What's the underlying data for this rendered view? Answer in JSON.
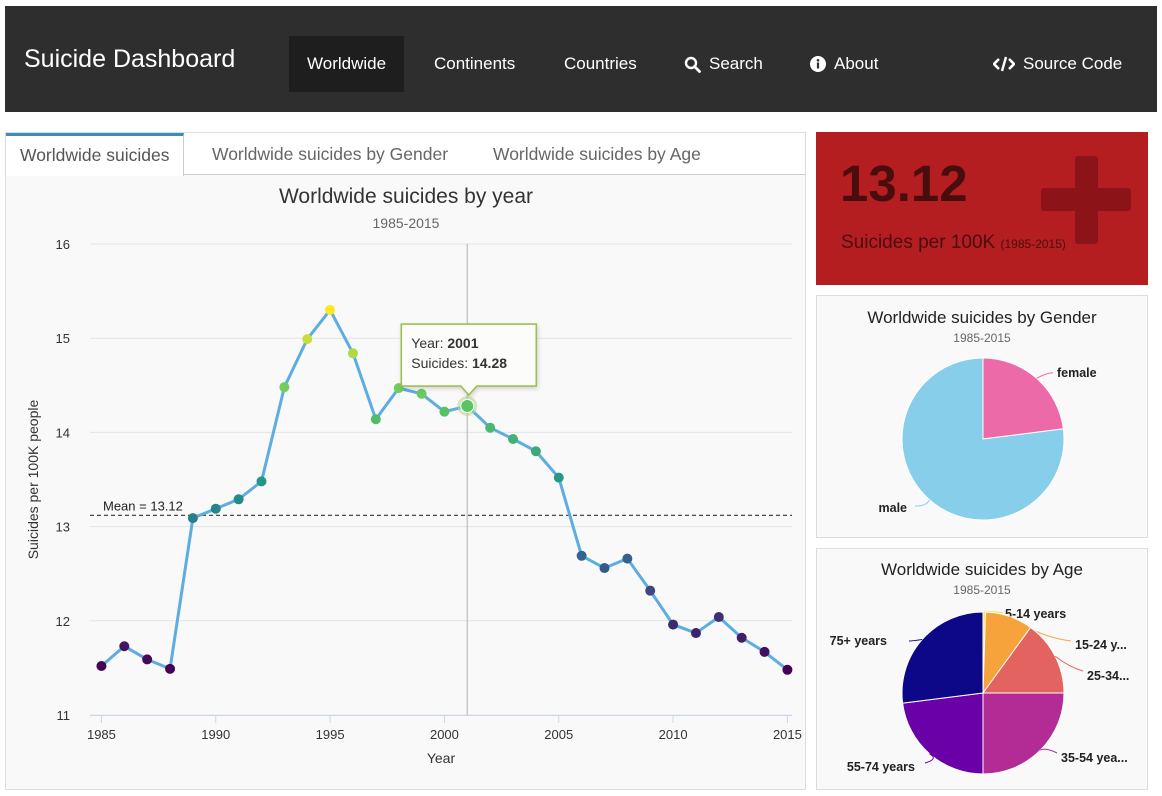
{
  "navbar": {
    "brand": "Suicide Dashboard",
    "items": [
      {
        "label": "Worldwide",
        "active": true
      },
      {
        "label": "Continents"
      },
      {
        "label": "Countries"
      },
      {
        "label": "Search",
        "icon": "search-icon"
      },
      {
        "label": "About",
        "icon": "info-icon"
      }
    ],
    "source_code": {
      "label": "Source Code",
      "icon": "code-icon"
    }
  },
  "tabs": [
    {
      "label": "Worldwide suicides",
      "active": true
    },
    {
      "label": "Worldwide suicides by Gender"
    },
    {
      "label": "Worldwide suicides by Age"
    }
  ],
  "kpi": {
    "value": "13.12",
    "label": "Suicides per 100K",
    "period": "(1985-2015)",
    "icon": "plus-icon",
    "color": "#b51e21"
  },
  "main_chart": {
    "title": "Worldwide suicides by year",
    "subtitle": "1985-2015",
    "mean_label": "Mean = 13.12",
    "tooltip": {
      "year_label": "Year:",
      "year": "2001",
      "value_label": "Suicides:",
      "value": "14.28"
    }
  },
  "gender_box": {
    "title": "Worldwide suicides by Gender",
    "subtitle": "1985-2015"
  },
  "age_box": {
    "title": "Worldwide suicides by Age",
    "subtitle": "1985-2015"
  },
  "chart_data": [
    {
      "type": "line",
      "title": "Worldwide suicides by year",
      "subtitle": "1985-2015",
      "xlabel": "Year",
      "ylabel": "Suicides per 100K people",
      "xlim": [
        1984.5,
        2015.2
      ],
      "ylim": [
        11,
        16
      ],
      "xticks": [
        1985,
        1990,
        1995,
        2000,
        2005,
        2010,
        2015
      ],
      "yticks": [
        11,
        12,
        13,
        14,
        15,
        16
      ],
      "grid": true,
      "mean": 13.12,
      "line_color": "#5dade2",
      "x": [
        1985,
        1986,
        1987,
        1988,
        1989,
        1990,
        1991,
        1992,
        1993,
        1994,
        1995,
        1996,
        1997,
        1998,
        1999,
        2000,
        2001,
        2002,
        2003,
        2004,
        2005,
        2006,
        2007,
        2008,
        2009,
        2010,
        2011,
        2012,
        2013,
        2014,
        2015
      ],
      "values": [
        11.52,
        11.73,
        11.59,
        11.49,
        13.09,
        13.19,
        13.29,
        13.48,
        14.48,
        14.99,
        15.3,
        14.84,
        14.14,
        14.47,
        14.41,
        14.22,
        14.28,
        14.05,
        13.93,
        13.8,
        13.52,
        12.69,
        12.56,
        12.66,
        12.32,
        11.96,
        11.87,
        12.04,
        11.82,
        11.67,
        11.48
      ]
    },
    {
      "type": "pie",
      "title": "Worldwide suicides by Gender",
      "subtitle": "1985-2015",
      "categories": [
        "female",
        "male"
      ],
      "values": [
        23,
        77
      ],
      "colors": [
        "#ec6aa7",
        "#87ceeb"
      ]
    },
    {
      "type": "pie",
      "title": "Worldwide suicides by Age",
      "subtitle": "1985-2015",
      "categories": [
        "5-14 years",
        "15-24 y...",
        "25-34...",
        "35-54 yea...",
        "55-74 years",
        "75+ years"
      ],
      "values": [
        0.5,
        9.5,
        15,
        25,
        23,
        27
      ],
      "colors": [
        "#f6e836",
        "#f6a33c",
        "#e2635f",
        "#b32b95",
        "#6a00a8",
        "#0d0887"
      ]
    }
  ]
}
